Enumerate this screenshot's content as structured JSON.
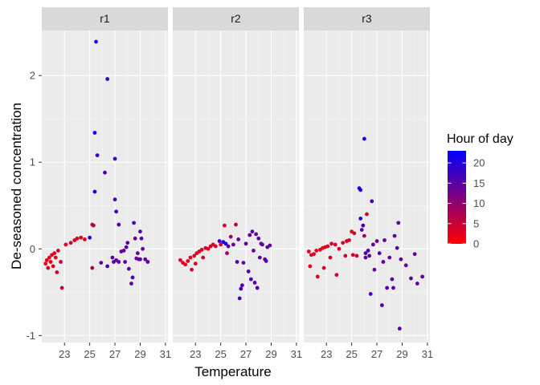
{
  "chart_data": {
    "type": "scatter",
    "facet_by": "sensor",
    "facets": [
      "r1",
      "r2",
      "r3"
    ],
    "xlabel": "Temperature",
    "ylabel": "De-seasoned concentration",
    "xlim": [
      21.2,
      31.2
    ],
    "ylim": [
      -1.08,
      2.52
    ],
    "x_ticks": [
      23,
      25,
      27,
      29,
      31
    ],
    "y_ticks": [
      -1,
      0,
      1,
      2
    ],
    "grid": true,
    "legend_position": "right",
    "color_scale": {
      "title": "Hour of day",
      "low_color": "#ff0000",
      "high_color": "#0000ff",
      "min": 0,
      "max": 23,
      "breaks": [
        0,
        5,
        10,
        15,
        20
      ]
    },
    "series": [
      {
        "facet": "r1",
        "points": [
          [
            21.5,
            -0.17,
            2
          ],
          [
            21.6,
            -0.13,
            1
          ],
          [
            21.7,
            -0.22,
            3
          ],
          [
            21.8,
            -0.1,
            2
          ],
          [
            21.9,
            -0.15,
            1
          ],
          [
            22.0,
            -0.07,
            2
          ],
          [
            22.1,
            -0.2,
            4
          ],
          [
            22.2,
            -0.05,
            3
          ],
          [
            22.3,
            -0.1,
            2
          ],
          [
            22.4,
            -0.27,
            4
          ],
          [
            22.5,
            -0.02,
            3
          ],
          [
            22.7,
            -0.15,
            5
          ],
          [
            22.8,
            -0.45,
            5
          ],
          [
            23.1,
            0.05,
            3
          ],
          [
            23.5,
            0.07,
            4
          ],
          [
            23.8,
            0.1,
            4
          ],
          [
            24.0,
            0.12,
            3
          ],
          [
            24.3,
            0.13,
            3
          ],
          [
            24.6,
            0.11,
            3
          ],
          [
            25.0,
            0.13,
            20
          ],
          [
            25.2,
            0.28,
            5
          ],
          [
            25.3,
            0.27,
            6
          ],
          [
            25.4,
            1.34,
            21
          ],
          [
            25.4,
            0.66,
            22
          ],
          [
            25.5,
            2.39,
            19
          ],
          [
            25.6,
            1.08,
            18
          ],
          [
            25.2,
            -0.22,
            7
          ],
          [
            25.9,
            -0.16,
            15
          ],
          [
            26.2,
            0.88,
            17
          ],
          [
            26.4,
            1.96,
            18
          ],
          [
            26.4,
            -0.2,
            16
          ],
          [
            26.8,
            -0.1,
            15
          ],
          [
            27.0,
            1.04,
            16
          ],
          [
            27.0,
            0.57,
            16
          ],
          [
            27.1,
            0.43,
            17
          ],
          [
            27.3,
            0.28,
            16
          ],
          [
            27.1,
            -0.13,
            14
          ],
          [
            27.3,
            -0.15,
            15
          ],
          [
            27.5,
            -0.03,
            14
          ],
          [
            27.7,
            -0.02,
            15
          ],
          [
            27.9,
            0.02,
            15
          ],
          [
            27.8,
            -0.15,
            14
          ],
          [
            28.0,
            0.07,
            14
          ],
          [
            28.1,
            -0.23,
            14
          ],
          [
            28.3,
            -0.4,
            15
          ],
          [
            28.4,
            -0.33,
            16
          ],
          [
            28.5,
            0.3,
            15
          ],
          [
            28.6,
            0.12,
            14
          ],
          [
            28.7,
            -0.11,
            14
          ],
          [
            28.8,
            -0.05,
            14
          ],
          [
            29.0,
            0.2,
            15
          ],
          [
            29.0,
            -0.12,
            14
          ],
          [
            29.1,
            0.12,
            15
          ],
          [
            29.2,
            0.0,
            14
          ],
          [
            29.4,
            -0.12,
            15
          ],
          [
            29.6,
            -0.15,
            15
          ],
          [
            28.9,
            -0.12,
            14
          ],
          [
            26.9,
            -0.15,
            15
          ]
        ]
      },
      {
        "facet": "r2",
        "points": [
          [
            21.8,
            -0.13,
            2
          ],
          [
            22.0,
            -0.16,
            3
          ],
          [
            22.2,
            -0.18,
            2
          ],
          [
            22.4,
            -0.14,
            3
          ],
          [
            22.6,
            -0.1,
            3
          ],
          [
            22.7,
            -0.24,
            4
          ],
          [
            22.9,
            -0.08,
            3
          ],
          [
            23.1,
            -0.05,
            4
          ],
          [
            23.0,
            -0.17,
            3
          ],
          [
            23.3,
            -0.03,
            3
          ],
          [
            23.5,
            -0.01,
            4
          ],
          [
            23.6,
            -0.1,
            4
          ],
          [
            23.8,
            0.01,
            4
          ],
          [
            24.0,
            0.0,
            3
          ],
          [
            24.2,
            0.03,
            4
          ],
          [
            24.4,
            0.05,
            3
          ],
          [
            24.6,
            0.03,
            4
          ],
          [
            24.9,
            0.09,
            18
          ],
          [
            25.0,
            0.05,
            3
          ],
          [
            25.2,
            0.08,
            20
          ],
          [
            25.3,
            0.27,
            4
          ],
          [
            25.4,
            0.06,
            22
          ],
          [
            25.5,
            -0.05,
            8
          ],
          [
            25.6,
            0.03,
            15
          ],
          [
            25.8,
            0.14,
            10
          ],
          [
            26.0,
            0.05,
            14
          ],
          [
            26.2,
            0.28,
            6
          ],
          [
            26.3,
            -0.15,
            15
          ],
          [
            26.4,
            0.11,
            14
          ],
          [
            26.5,
            -0.57,
            16
          ],
          [
            26.6,
            -0.46,
            17
          ],
          [
            26.7,
            -0.42,
            16
          ],
          [
            26.8,
            -0.16,
            14
          ],
          [
            27.0,
            0.06,
            15
          ],
          [
            27.2,
            -0.26,
            15
          ],
          [
            27.3,
            0.16,
            14
          ],
          [
            27.4,
            -0.35,
            16
          ],
          [
            27.5,
            0.2,
            15
          ],
          [
            27.6,
            -0.02,
            14
          ],
          [
            27.7,
            -0.39,
            15
          ],
          [
            27.8,
            0.17,
            14
          ],
          [
            27.9,
            -0.45,
            16
          ],
          [
            28.0,
            0.12,
            15
          ],
          [
            28.1,
            -0.1,
            14
          ],
          [
            28.2,
            0.06,
            14
          ],
          [
            28.3,
            0.05,
            14
          ],
          [
            28.5,
            -0.12,
            14
          ],
          [
            28.6,
            -0.14,
            15
          ],
          [
            28.7,
            0.02,
            15
          ],
          [
            28.9,
            0.04,
            14
          ]
        ]
      },
      {
        "facet": "r3",
        "points": [
          [
            21.6,
            -0.03,
            2
          ],
          [
            21.7,
            -0.2,
            2
          ],
          [
            21.8,
            -0.07,
            3
          ],
          [
            22.0,
            -0.06,
            3
          ],
          [
            22.2,
            -0.02,
            2
          ],
          [
            22.3,
            -0.32,
            3
          ],
          [
            22.5,
            -0.01,
            3
          ],
          [
            22.7,
            0.01,
            2
          ],
          [
            22.8,
            -0.22,
            3
          ],
          [
            22.9,
            0.02,
            3
          ],
          [
            23.1,
            0.03,
            3
          ],
          [
            23.3,
            -0.1,
            4
          ],
          [
            23.4,
            0.06,
            3
          ],
          [
            23.7,
            0.05,
            4
          ],
          [
            23.8,
            -0.3,
            4
          ],
          [
            24.0,
            0.0,
            4
          ],
          [
            24.3,
            0.07,
            4
          ],
          [
            24.5,
            -0.08,
            4
          ],
          [
            24.6,
            0.09,
            4
          ],
          [
            24.8,
            0.1,
            4
          ],
          [
            25.0,
            0.2,
            2
          ],
          [
            25.1,
            -0.07,
            4
          ],
          [
            25.2,
            0.18,
            5
          ],
          [
            25.4,
            -0.08,
            4
          ],
          [
            25.6,
            0.7,
            21
          ],
          [
            25.7,
            0.68,
            21
          ],
          [
            25.7,
            0.35,
            19
          ],
          [
            25.8,
            0.22,
            15
          ],
          [
            25.9,
            0.27,
            17
          ],
          [
            26.0,
            1.27,
            20
          ],
          [
            26.0,
            0.15,
            8
          ],
          [
            26.1,
            -0.05,
            16
          ],
          [
            26.1,
            -0.1,
            15
          ],
          [
            26.2,
            0.4,
            4
          ],
          [
            26.3,
            -0.02,
            16
          ],
          [
            26.4,
            -0.08,
            14
          ],
          [
            26.5,
            -0.52,
            16
          ],
          [
            26.6,
            0.55,
            16
          ],
          [
            26.7,
            0.05,
            14
          ],
          [
            26.8,
            -0.24,
            14
          ],
          [
            27.0,
            0.09,
            14
          ],
          [
            27.2,
            -0.05,
            16
          ],
          [
            27.4,
            -0.65,
            16
          ],
          [
            27.5,
            -0.15,
            14
          ],
          [
            27.6,
            0.1,
            14
          ],
          [
            27.8,
            -0.45,
            16
          ],
          [
            28.0,
            -0.1,
            14
          ],
          [
            28.2,
            -0.35,
            15
          ],
          [
            28.3,
            -0.45,
            15
          ],
          [
            28.4,
            0.15,
            15
          ],
          [
            28.6,
            0.01,
            15
          ],
          [
            28.7,
            0.3,
            14
          ],
          [
            28.9,
            -0.12,
            14
          ],
          [
            28.8,
            -0.92,
            15
          ],
          [
            29.3,
            -0.19,
            14
          ],
          [
            29.7,
            -0.34,
            15
          ],
          [
            30.0,
            -0.06,
            14
          ],
          [
            30.2,
            -0.4,
            14
          ],
          [
            30.6,
            -0.32,
            14
          ]
        ]
      }
    ]
  }
}
